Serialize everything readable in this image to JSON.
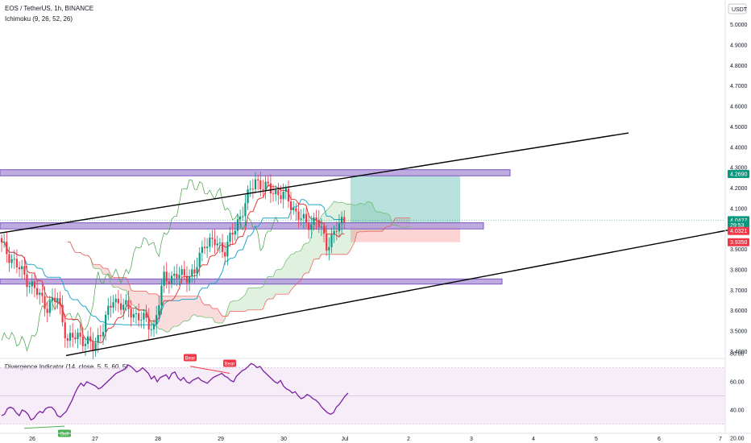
{
  "header": {
    "symbol_title": "EOS / TetherUS, 1h, BINANCE",
    "indicator_1": "Ichimoku (9, 26, 52, 26)",
    "indicator_2": "Divergence Indicator (14, close, 5, 5, 60, 5)",
    "currency_badge": "USDT"
  },
  "price_axis": {
    "ticks": [
      "5.0000",
      "4.9000",
      "4.8000",
      "4.7000",
      "4.6000",
      "4.5000",
      "4.4000",
      "4.3000",
      "4.2000",
      "4.1000",
      "3.9000",
      "3.8000",
      "3.7000",
      "3.6000",
      "3.5000",
      "3.4000"
    ],
    "labels": [
      {
        "text": "4.2690",
        "value": 4.269,
        "color": "#089981"
      },
      {
        "text": "4.0427",
        "value": 4.0427,
        "color": "#089981"
      },
      {
        "text": "29:53",
        "value": 4.018,
        "color": "#089981"
      },
      {
        "text": "4.0321",
        "value": 3.99,
        "color": "#f23645"
      },
      {
        "text": "3.9350",
        "value": 3.935,
        "color": "#f23645"
      }
    ]
  },
  "osc_axis": {
    "ticks": [
      "80.00",
      "60.00",
      "40.00",
      "20.00"
    ]
  },
  "time_axis": {
    "ticks": [
      "26",
      "27",
      "28",
      "29",
      "30",
      "Jul",
      "2",
      "3",
      "4",
      "5",
      "6",
      "7"
    ]
  },
  "signals": [
    {
      "label": "Bull",
      "color": "#4caf50"
    },
    {
      "label": "Bear",
      "color": "#f23645"
    },
    {
      "label": "Bear",
      "color": "#f23645"
    }
  ],
  "colors": {
    "up": "#089981",
    "down": "#f23645",
    "tenkan": "#e03a3a",
    "kijun": "#22a8c8",
    "chikou": "#43a047",
    "zone": "#9575cd",
    "osc": "#7b1fa2",
    "trend": "#000000"
  },
  "chart_data": {
    "type": "candlestick",
    "title": "EOS / TetherUS, 1h, BINANCE",
    "price_range": [
      3.35,
      5.1
    ],
    "oscillator_range": [
      15,
      85
    ],
    "last_price": 4.0427,
    "horizontal_zones": [
      {
        "low": 4.26,
        "high": 4.29
      },
      {
        "low": 4.0,
        "high": 4.03
      },
      {
        "low": 3.73,
        "high": 3.755
      }
    ],
    "trendlines": [
      {
        "from": [
          0,
          3.98
        ],
        "to": [
          780,
          4.47
        ]
      },
      {
        "from": [
          82,
          3.38
        ],
        "to": [
          925,
          4.01
        ]
      }
    ],
    "position": {
      "entry": 4.03,
      "target": 4.26,
      "stop": 3.935
    },
    "oscillator_levels": [
      70,
      50,
      30
    ],
    "oscillator": [
      36,
      37,
      41,
      42,
      41,
      38,
      36,
      40,
      39,
      37,
      33,
      34,
      37,
      39,
      38,
      41,
      42,
      42,
      40,
      36,
      35,
      37,
      39,
      43,
      47,
      52,
      56,
      59,
      57,
      60,
      59,
      58,
      57,
      55,
      56,
      58,
      60,
      62,
      64,
      66,
      67,
      68,
      69,
      72,
      71,
      69,
      67,
      68,
      70,
      68,
      66,
      62,
      64,
      60,
      63,
      64,
      65,
      62,
      66,
      67,
      63,
      61,
      63,
      60,
      59,
      61,
      62,
      63,
      61,
      60,
      59,
      61,
      63,
      64,
      65,
      66,
      64,
      63,
      61,
      60,
      64,
      66,
      68,
      69,
      71,
      73,
      72,
      70,
      71,
      68,
      66,
      64,
      62,
      60,
      59,
      61,
      57,
      55,
      54,
      52,
      53,
      50,
      48,
      49,
      51,
      50,
      48,
      47,
      45,
      42,
      40,
      38,
      37,
      38,
      42,
      44,
      47,
      50,
      52
    ]
  }
}
